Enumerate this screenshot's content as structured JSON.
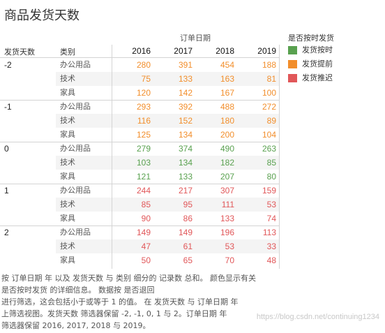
{
  "title": "商品发货天数",
  "column_group_header": "订单日期",
  "row_headers": {
    "delay": "发货天数",
    "category": "类别"
  },
  "years": [
    "2016",
    "2017",
    "2018",
    "2019"
  ],
  "legend": {
    "title": "是否按时发货",
    "items": [
      {
        "label": "发货按时",
        "color": "#59a14f"
      },
      {
        "label": "发货提前",
        "color": "#f28e2b"
      },
      {
        "label": "发货推迟",
        "color": "#e15759"
      }
    ]
  },
  "caption_lines": [
    "按 订单日期 年 以及 发货天数 与 类别 细分的 记录数 总和。 颜色显示有关",
    "是否按时发货 的详细信息。 数据按 是否退回",
    "进行筛选，这会包括小于或等于 1 的值。 在 发货天数 与 订单日期 年",
    "上筛选视图。发货天数 筛选器保留 -2, -1, 0, 1 与 2。订单日期 年",
    "筛选器保留 2016, 2017, 2018 与 2019。"
  ],
  "watermark": "https://blog.csdn.net/continuing1234",
  "chart_data": {
    "type": "table",
    "title": "商品发货天数",
    "column_header": "订单日期",
    "columns": [
      "2016",
      "2017",
      "2018",
      "2019"
    ],
    "groups": [
      {
        "delay": "-2",
        "status": "发货提前",
        "color": "#f28e2b",
        "rows": [
          {
            "category": "办公用品",
            "values": [
              280,
              391,
              454,
              188
            ]
          },
          {
            "category": "技术",
            "values": [
              75,
              133,
              163,
              81
            ]
          },
          {
            "category": "家具",
            "values": [
              120,
              142,
              167,
              100
            ]
          }
        ]
      },
      {
        "delay": "-1",
        "status": "发货提前",
        "color": "#f28e2b",
        "rows": [
          {
            "category": "办公用品",
            "values": [
              293,
              392,
              488,
              272
            ]
          },
          {
            "category": "技术",
            "values": [
              116,
              152,
              180,
              89
            ]
          },
          {
            "category": "家具",
            "values": [
              125,
              134,
              200,
              104
            ]
          }
        ]
      },
      {
        "delay": "0",
        "status": "发货按时",
        "color": "#59a14f",
        "rows": [
          {
            "category": "办公用品",
            "values": [
              279,
              374,
              490,
              263
            ]
          },
          {
            "category": "技术",
            "values": [
              103,
              134,
              182,
              85
            ]
          },
          {
            "category": "家具",
            "values": [
              121,
              133,
              207,
              80
            ]
          }
        ]
      },
      {
        "delay": "1",
        "status": "发货推迟",
        "color": "#e15759",
        "rows": [
          {
            "category": "办公用品",
            "values": [
              244,
              217,
              307,
              159
            ]
          },
          {
            "category": "技术",
            "values": [
              85,
              95,
              111,
              53
            ]
          },
          {
            "category": "家具",
            "values": [
              90,
              86,
              133,
              74
            ]
          }
        ]
      },
      {
        "delay": "2",
        "status": "发货推迟",
        "color": "#e15759",
        "rows": [
          {
            "category": "办公用品",
            "values": [
              149,
              149,
              196,
              113
            ]
          },
          {
            "category": "技术",
            "values": [
              47,
              61,
              53,
              33
            ]
          },
          {
            "category": "家具",
            "values": [
              50,
              65,
              70,
              48
            ]
          }
        ]
      }
    ]
  }
}
